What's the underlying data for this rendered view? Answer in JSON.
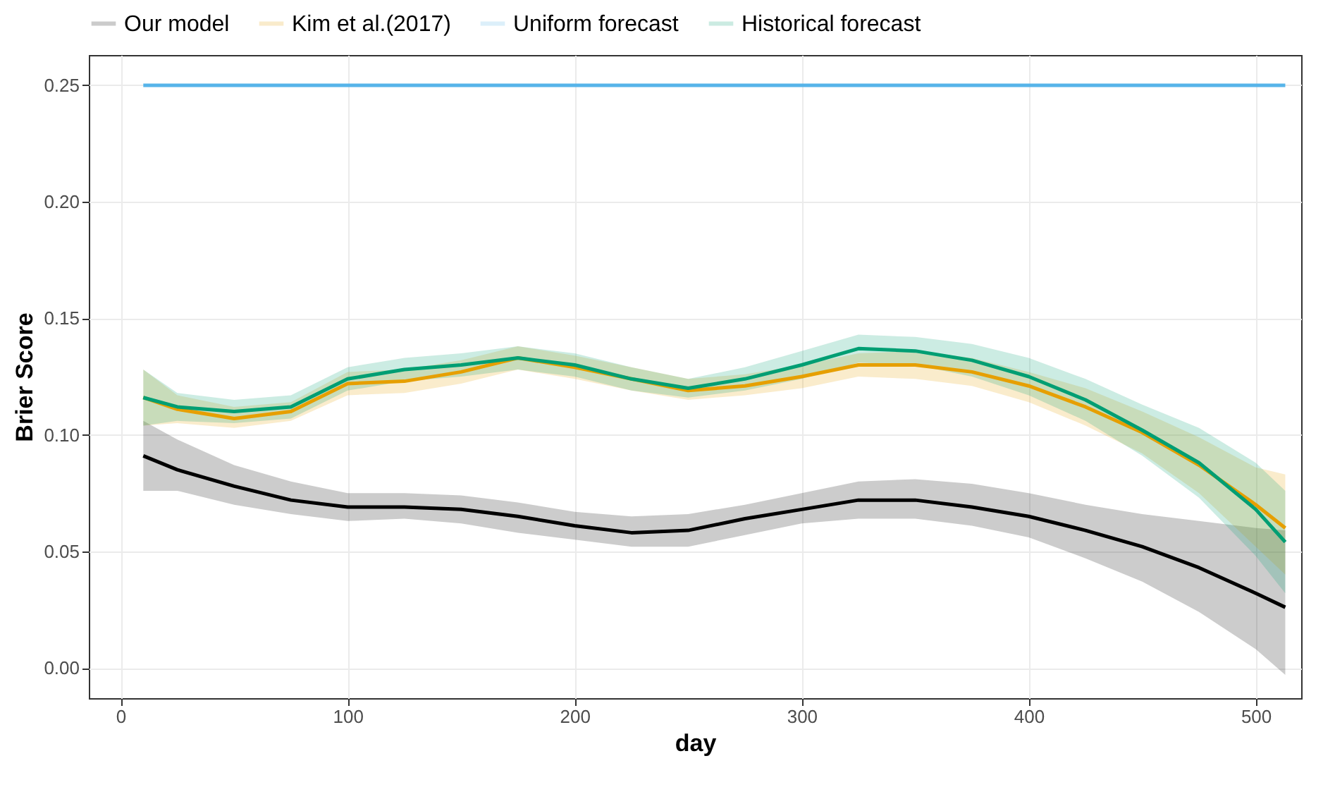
{
  "chart_data": {
    "type": "line",
    "xlabel": "day",
    "ylabel": "Brier Score",
    "legend": "top",
    "grid": true,
    "line_style": "solid",
    "xlim": [
      -14,
      520
    ],
    "ylim": [
      -0.013,
      0.263
    ],
    "xticks": [
      0,
      100,
      200,
      300,
      400,
      500
    ],
    "yticks": [
      {
        "value": 0,
        "label": "0.00"
      },
      {
        "value": 0.05,
        "label": "0.05"
      },
      {
        "value": 0.1,
        "label": "0.10"
      },
      {
        "value": 0.15,
        "label": "0.15"
      },
      {
        "value": 0.2,
        "label": "0.20"
      },
      {
        "value": 0.25,
        "label": "0.25"
      }
    ],
    "x": [
      10,
      25,
      50,
      75,
      100,
      125,
      150,
      175,
      200,
      225,
      250,
      275,
      300,
      325,
      350,
      375,
      400,
      425,
      450,
      475,
      500,
      513
    ],
    "series": [
      {
        "name": "Our model",
        "color": "#000000",
        "values": [
          0.091,
          0.085,
          0.078,
          0.072,
          0.069,
          0.069,
          0.068,
          0.065,
          0.061,
          0.058,
          0.059,
          0.064,
          0.068,
          0.072,
          0.072,
          0.069,
          0.065,
          0.059,
          0.052,
          0.043,
          0.032,
          0.026
        ],
        "lower": [
          0.076,
          0.076,
          0.07,
          0.066,
          0.063,
          0.064,
          0.062,
          0.058,
          0.055,
          0.052,
          0.052,
          0.057,
          0.062,
          0.064,
          0.064,
          0.061,
          0.056,
          0.047,
          0.037,
          0.024,
          0.008,
          -0.003
        ],
        "upper": [
          0.106,
          0.098,
          0.087,
          0.08,
          0.075,
          0.075,
          0.074,
          0.071,
          0.067,
          0.065,
          0.066,
          0.07,
          0.075,
          0.08,
          0.081,
          0.079,
          0.075,
          0.07,
          0.066,
          0.063,
          0.06,
          0.059
        ]
      },
      {
        "name": "Kim et al.(2017)",
        "color": "#e69f00",
        "values": [
          0.116,
          0.111,
          0.107,
          0.11,
          0.122,
          0.123,
          0.127,
          0.133,
          0.129,
          0.124,
          0.119,
          0.121,
          0.125,
          0.13,
          0.13,
          0.127,
          0.121,
          0.112,
          0.101,
          0.087,
          0.07,
          0.06
        ],
        "lower": [
          0.104,
          0.105,
          0.103,
          0.106,
          0.117,
          0.118,
          0.122,
          0.128,
          0.124,
          0.119,
          0.115,
          0.117,
          0.12,
          0.125,
          0.124,
          0.121,
          0.114,
          0.104,
          0.092,
          0.075,
          0.052,
          0.04
        ],
        "upper": [
          0.128,
          0.117,
          0.112,
          0.114,
          0.127,
          0.128,
          0.132,
          0.138,
          0.134,
          0.129,
          0.124,
          0.126,
          0.13,
          0.135,
          0.136,
          0.133,
          0.127,
          0.12,
          0.11,
          0.099,
          0.086,
          0.083
        ]
      },
      {
        "name": "Uniform forecast",
        "color": "#56b4e9",
        "values": [
          0.25,
          0.25,
          0.25,
          0.25,
          0.25,
          0.25,
          0.25,
          0.25,
          0.25,
          0.25,
          0.25,
          0.25,
          0.25,
          0.25,
          0.25,
          0.25,
          0.25,
          0.25,
          0.25,
          0.25,
          0.25,
          0.25
        ]
      },
      {
        "name": "Historical forecast",
        "color": "#009e73",
        "values": [
          0.116,
          0.112,
          0.11,
          0.112,
          0.124,
          0.128,
          0.13,
          0.133,
          0.13,
          0.124,
          0.12,
          0.124,
          0.13,
          0.137,
          0.136,
          0.132,
          0.125,
          0.115,
          0.102,
          0.088,
          0.068,
          0.054
        ],
        "lower": [
          0.104,
          0.106,
          0.105,
          0.107,
          0.119,
          0.123,
          0.125,
          0.128,
          0.125,
          0.119,
          0.116,
          0.119,
          0.124,
          0.131,
          0.13,
          0.125,
          0.117,
          0.106,
          0.091,
          0.073,
          0.048,
          0.032
        ],
        "upper": [
          0.128,
          0.118,
          0.115,
          0.117,
          0.129,
          0.133,
          0.135,
          0.138,
          0.135,
          0.129,
          0.124,
          0.129,
          0.136,
          0.143,
          0.142,
          0.139,
          0.133,
          0.124,
          0.113,
          0.103,
          0.088,
          0.076
        ]
      }
    ]
  }
}
